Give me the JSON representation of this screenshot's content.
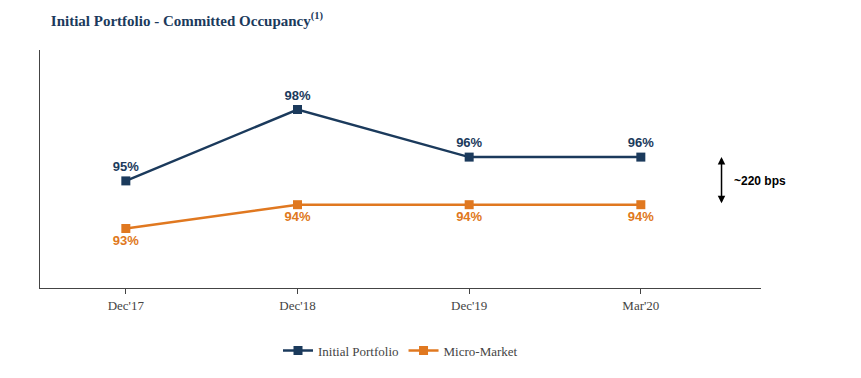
{
  "chart_data": {
    "type": "line",
    "title": "Initial Portfolio - Committed Occupancy",
    "title_super": "(1)",
    "categories": [
      "Dec'17",
      "Dec'18",
      "Dec'19",
      "Mar'20"
    ],
    "series": [
      {
        "name": "Initial Portfolio",
        "color": "#1b3a5c",
        "marker": "square",
        "line_style": "solid",
        "values": [
          95,
          98,
          96,
          96
        ],
        "value_labels": [
          "95%",
          "98%",
          "96%",
          "96%"
        ]
      },
      {
        "name": "Micro-Market",
        "color": "#e07820",
        "marker": "square",
        "line_style": "solid",
        "values": [
          93,
          94,
          94,
          94
        ],
        "value_labels": [
          "93%",
          "94%",
          "94%",
          "94%"
        ]
      }
    ],
    "ylim": [
      90.5,
      100.5
    ],
    "yticks": [],
    "tick_labels": "x",
    "grid": false,
    "legend": "bottom",
    "data_labels": true,
    "annotation": "~220 bps"
  }
}
